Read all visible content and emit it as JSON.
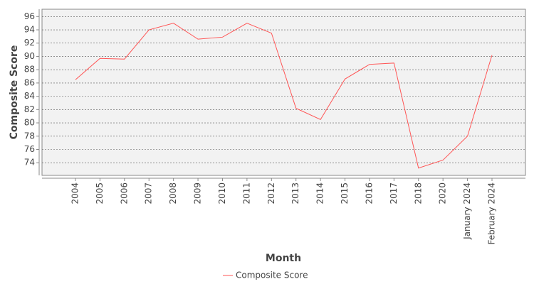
{
  "chart_data": {
    "type": "line",
    "x_label": "Month",
    "y_label": "Composite Score",
    "categories": [
      "2004",
      "2005",
      "2006",
      "2007",
      "2008",
      "2009",
      "2010",
      "2011",
      "2012",
      "2013",
      "2014",
      "2015",
      "2016",
      "2017",
      "2018",
      "2020",
      "January 2024",
      "February 2024"
    ],
    "series": [
      {
        "name": "Composite Score",
        "color": "#ff5555",
        "values": [
          86.5,
          89.7,
          89.6,
          94.0,
          95.0,
          92.6,
          92.9,
          95.0,
          93.5,
          82.2,
          80.5,
          86.6,
          88.8,
          89.0,
          73.2,
          74.4,
          78.0,
          90.2
        ]
      }
    ],
    "ylim": [
      72.1,
      97.1
    ],
    "yticks": [
      74,
      76,
      78,
      80,
      82,
      84,
      86,
      88,
      90,
      92,
      94,
      96
    ],
    "grid": true,
    "legend": "bottom"
  }
}
